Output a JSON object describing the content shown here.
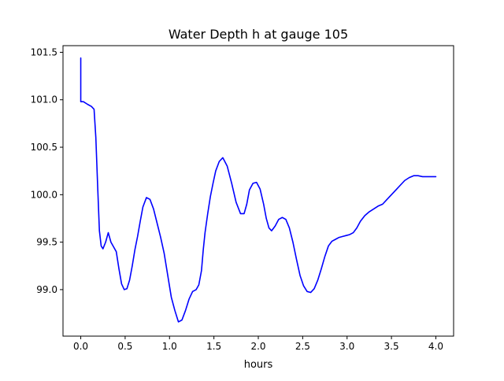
{
  "chart_data": {
    "type": "line",
    "title": "Water Depth h at gauge 105",
    "xlabel": "hours",
    "ylabel": "",
    "xlim": [
      -0.2,
      4.2
    ],
    "ylim": [
      98.51,
      101.57
    ],
    "x_ticks": [
      0.0,
      0.5,
      1.0,
      1.5,
      2.0,
      2.5,
      3.0,
      3.5,
      4.0
    ],
    "x_tick_labels": [
      "0.0",
      "0.5",
      "1.0",
      "1.5",
      "2.0",
      "2.5",
      "3.0",
      "3.5",
      "4.0"
    ],
    "y_ticks": [
      99.0,
      99.5,
      100.0,
      100.5,
      101.0,
      101.5
    ],
    "y_tick_labels": [
      "99.0",
      "99.5",
      "100.0",
      "100.5",
      "101.0",
      "101.5"
    ],
    "grid": false,
    "legend": "none",
    "series": [
      {
        "color": "#0000ff",
        "x": [
          0.0,
          0.0,
          0.0,
          0.03,
          0.08,
          0.12,
          0.15,
          0.17,
          0.19,
          0.21,
          0.23,
          0.25,
          0.28,
          0.31,
          0.34,
          0.37,
          0.4,
          0.43,
          0.46,
          0.49,
          0.52,
          0.55,
          0.58,
          0.61,
          0.64,
          0.67,
          0.7,
          0.74,
          0.78,
          0.82,
          0.86,
          0.9,
          0.94,
          0.98,
          1.02,
          1.06,
          1.1,
          1.14,
          1.18,
          1.22,
          1.26,
          1.3,
          1.33,
          1.36,
          1.38,
          1.4,
          1.43,
          1.46,
          1.49,
          1.52,
          1.56,
          1.6,
          1.65,
          1.7,
          1.75,
          1.8,
          1.84,
          1.87,
          1.9,
          1.94,
          1.98,
          2.02,
          2.06,
          2.09,
          2.12,
          2.15,
          2.19,
          2.23,
          2.27,
          2.31,
          2.35,
          2.39,
          2.43,
          2.47,
          2.51,
          2.55,
          2.59,
          2.63,
          2.67,
          2.71,
          2.75,
          2.79,
          2.83,
          2.87,
          2.91,
          2.95,
          2.99,
          3.03,
          3.07,
          3.11,
          3.15,
          3.2,
          3.25,
          3.3,
          3.35,
          3.4,
          3.45,
          3.5,
          3.55,
          3.6,
          3.65,
          3.7,
          3.75,
          3.8,
          3.85,
          3.9,
          3.95,
          4.0
        ],
        "y": [
          101.44,
          101.44,
          100.98,
          100.98,
          100.95,
          100.93,
          100.9,
          100.6,
          100.1,
          99.62,
          99.46,
          99.43,
          99.5,
          99.6,
          99.5,
          99.45,
          99.4,
          99.22,
          99.06,
          99.0,
          99.01,
          99.1,
          99.25,
          99.42,
          99.56,
          99.72,
          99.87,
          99.97,
          99.95,
          99.85,
          99.7,
          99.55,
          99.38,
          99.15,
          98.92,
          98.78,
          98.66,
          98.68,
          98.78,
          98.9,
          98.98,
          99.0,
          99.05,
          99.2,
          99.42,
          99.6,
          99.8,
          99.98,
          100.12,
          100.25,
          100.35,
          100.39,
          100.3,
          100.12,
          99.92,
          99.8,
          99.8,
          99.9,
          100.05,
          100.12,
          100.13,
          100.06,
          99.9,
          99.75,
          99.65,
          99.62,
          99.67,
          99.74,
          99.76,
          99.74,
          99.65,
          99.5,
          99.32,
          99.15,
          99.04,
          98.98,
          98.97,
          99.01,
          99.1,
          99.22,
          99.35,
          99.46,
          99.51,
          99.53,
          99.55,
          99.56,
          99.57,
          99.58,
          99.6,
          99.65,
          99.72,
          99.78,
          99.82,
          99.85,
          99.88,
          99.9,
          99.95,
          100.0,
          100.05,
          100.1,
          100.15,
          100.18,
          100.2,
          100.2,
          100.19,
          100.19,
          100.19,
          100.19
        ]
      }
    ]
  }
}
